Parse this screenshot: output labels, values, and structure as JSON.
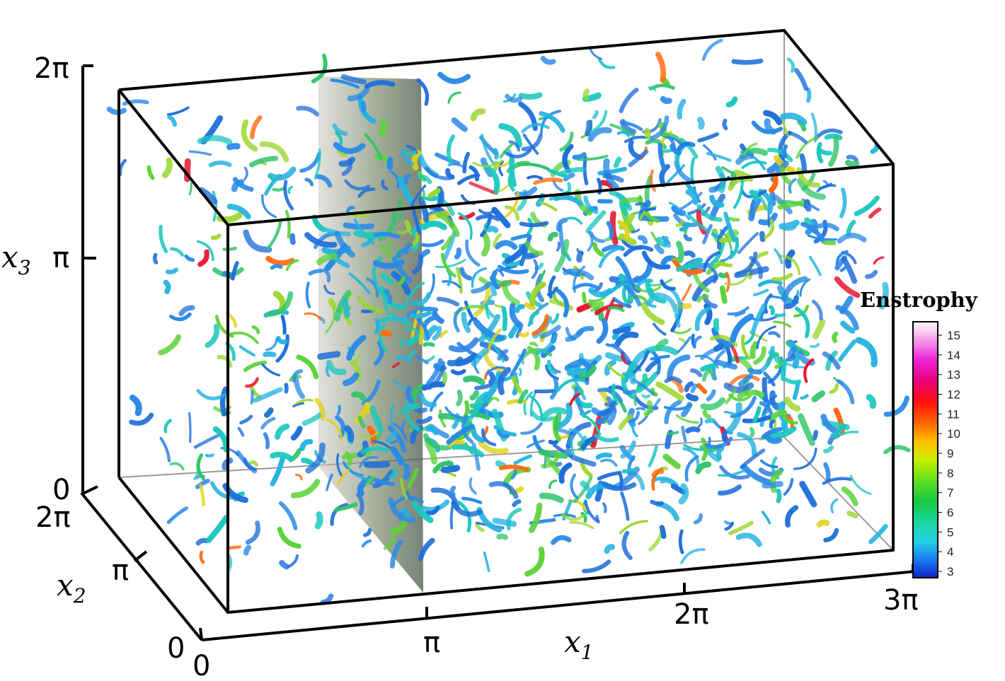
{
  "figure": {
    "axes": {
      "x1": {
        "symbol": "x",
        "subscript": "1",
        "ticks": [
          "0",
          "π",
          "2π",
          "3π"
        ]
      },
      "x2": {
        "symbol": "x",
        "subscript": "2",
        "ticks": [
          "0",
          "π",
          "2π"
        ]
      },
      "x3": {
        "symbol": "x",
        "subscript": "3",
        "ticks": [
          "0",
          "π",
          "2π"
        ]
      }
    },
    "colorbar": {
      "title": "Enstrophy",
      "levels": [
        "15",
        "14",
        "13",
        "12",
        "11",
        "10",
        "9",
        "8",
        "7",
        "6",
        "5",
        "4",
        "3"
      ],
      "colors": [
        "#ffffff",
        "#f490e8",
        "#ee22d8",
        "#e8007a",
        "#ff1010",
        "#ff6000",
        "#ffc000",
        "#c8f000",
        "#60e020",
        "#18c840",
        "#1ad69a",
        "#22d0e8",
        "#1a7af0",
        "#1020c8"
      ]
    },
    "scene_colors": {
      "tube_palette": [
        "#1e6fd9",
        "#2a8ae6",
        "#25b3e0",
        "#1cc7c0",
        "#32c46a",
        "#5cd23a",
        "#9ad62c",
        "#e0d21e",
        "#ff6a10",
        "#e8102a"
      ],
      "shock_sheet": "#5a6a5a",
      "box_lines": "#000000",
      "back_lines": "#999999"
    }
  }
}
